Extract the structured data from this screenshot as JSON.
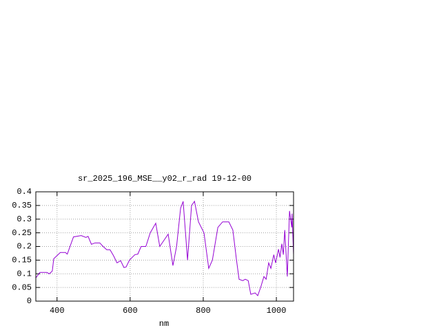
{
  "chart_data": {
    "type": "line",
    "title": "sr_2025_196_MSE__y02_r_rad 19-12-00",
    "x_label": "nm",
    "x": [
      342,
      353,
      372,
      379,
      387,
      391,
      409,
      423,
      428,
      445,
      466,
      479,
      485,
      494,
      504,
      517,
      526,
      536,
      545,
      555,
      564,
      574,
      583,
      589,
      598,
      613,
      621,
      630,
      643,
      655,
      670,
      681,
      704,
      717,
      727,
      738,
      745,
      757,
      768,
      776,
      787,
      802,
      815,
      825,
      840,
      853,
      870,
      881,
      891,
      898,
      908,
      915,
      923,
      930,
      942,
      949,
      957,
      966,
      972,
      979,
      985,
      993,
      998,
      1006,
      1010,
      1015,
      1019,
      1023,
      1030,
      1036,
      1042,
      1043,
      1047
    ],
    "series": [
      {
        "color": "#9400d3",
        "values": [
          0.085,
          0.105,
          0.105,
          0.1,
          0.11,
          0.155,
          0.178,
          0.178,
          0.172,
          0.235,
          0.24,
          0.233,
          0.237,
          0.208,
          0.213,
          0.213,
          0.2,
          0.188,
          0.188,
          0.165,
          0.14,
          0.148,
          0.123,
          0.125,
          0.15,
          0.17,
          0.172,
          0.2,
          0.2,
          0.25,
          0.285,
          0.2,
          0.245,
          0.13,
          0.2,
          0.34,
          0.365,
          0.15,
          0.35,
          0.365,
          0.29,
          0.25,
          0.12,
          0.15,
          0.27,
          0.29,
          0.29,
          0.26,
          0.15,
          0.08,
          0.075,
          0.08,
          0.075,
          0.025,
          0.03,
          0.02,
          0.05,
          0.09,
          0.08,
          0.14,
          0.12,
          0.17,
          0.14,
          0.19,
          0.16,
          0.21,
          0.17,
          0.26,
          0.09,
          0.33,
          0.27,
          0.32,
          0.17
        ]
      }
    ],
    "xlim": [
      342,
      1047
    ],
    "xticks": [
      400,
      600,
      800,
      1000
    ],
    "ylim": [
      0,
      0.4
    ],
    "yticks": [
      0,
      0.05,
      0.1,
      0.15,
      0.2,
      0.25,
      0.3,
      0.35,
      0.4
    ],
    "grid": true
  }
}
